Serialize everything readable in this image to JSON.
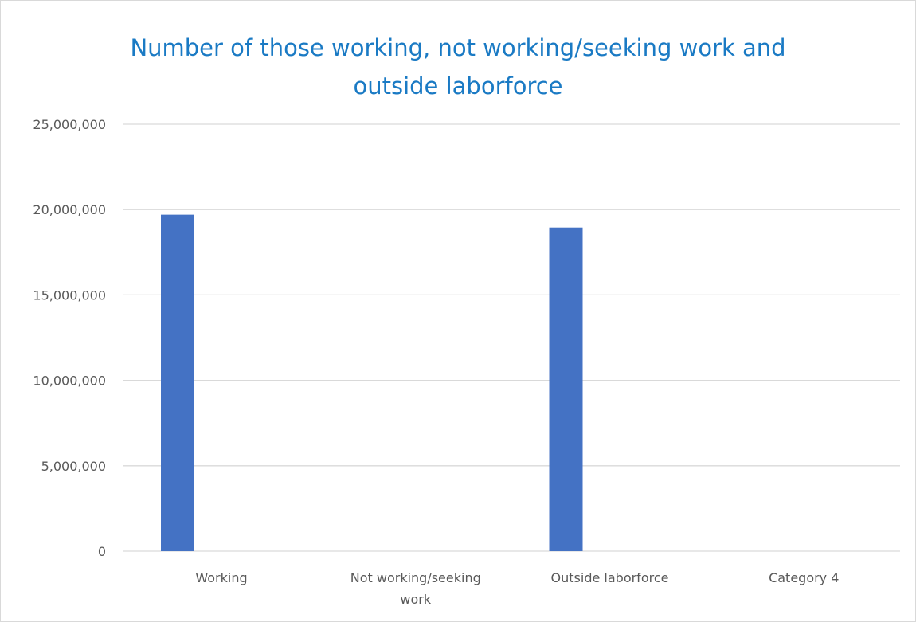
{
  "chart_data": {
    "type": "bar",
    "title": "Number of those working, not working/seeking work and\noutside laborforce",
    "categories": [
      "Working",
      "Not working/seeking work",
      "Outside laborforce",
      "Category 4"
    ],
    "category_label_lines": [
      [
        "Working"
      ],
      [
        "Not working/seeking",
        "work"
      ],
      [
        "Outside laborforce"
      ],
      [
        "Category 4"
      ]
    ],
    "values": [
      19700000,
      0,
      18950000,
      0
    ],
    "ylim": [
      0,
      25000000
    ],
    "yticks": [
      0,
      5000000,
      10000000,
      15000000,
      20000000,
      25000000
    ],
    "ytick_labels": [
      "0",
      "5,000,000",
      "10,000,000",
      "15,000,000",
      "20,000,000",
      "25,000,000"
    ],
    "xlabel": "",
    "ylabel": "",
    "grid": true,
    "legend": "none",
    "colors": {
      "bar": "#4472c4",
      "grid": "#d9d9d9",
      "title": "#1a7ac4",
      "text": "#595959"
    }
  }
}
